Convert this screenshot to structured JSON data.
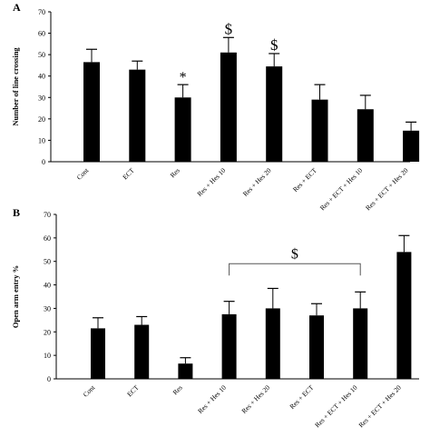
{
  "chart_data": [
    {
      "type": "bar",
      "panel_label": "A",
      "title": "",
      "xlabel": "",
      "ylabel": "Number of line crossing",
      "ylim": [
        0,
        70
      ],
      "yticks": [
        0,
        10,
        20,
        30,
        40,
        50,
        60,
        70
      ],
      "grid": false,
      "categories": [
        "Cont",
        "ECT",
        "Res",
        "Res + Hes 10",
        "Res + Hes 20",
        "Res + ECT",
        "Res + ECT + Hes 10",
        "Res + ECT + Hes 20"
      ],
      "values": [
        46.5,
        43,
        30,
        51,
        44.5,
        29,
        24.5,
        14.5
      ],
      "errors": [
        6,
        4,
        6,
        7,
        6,
        7,
        6.5,
        4
      ],
      "markers": [
        "",
        "",
        "*",
        "$",
        "$",
        "",
        "",
        ""
      ]
    },
    {
      "type": "bar",
      "panel_label": "B",
      "title": "",
      "xlabel": "",
      "ylabel": "Open arm entry %",
      "ylim": [
        0,
        70
      ],
      "yticks": [
        0,
        10,
        20,
        30,
        40,
        50,
        60,
        70
      ],
      "grid": false,
      "categories": [
        "Cont",
        "ECT",
        "Res",
        "Res + Hes 10",
        "Res + Hes 20",
        "Res + ECT",
        "Res + ECT + Hes 10",
        "Res + ECT + Hes 20"
      ],
      "values": [
        21.5,
        23,
        6.5,
        27.5,
        30,
        27,
        30,
        54
      ],
      "errors": [
        4.5,
        3.5,
        2.5,
        5.5,
        8.5,
        5,
        7,
        7
      ],
      "markers": [
        "",
        "",
        "",
        "",
        "",
        "",
        "",
        ""
      ],
      "bracket": {
        "from": 3,
        "to": 6,
        "label": "$"
      }
    }
  ]
}
